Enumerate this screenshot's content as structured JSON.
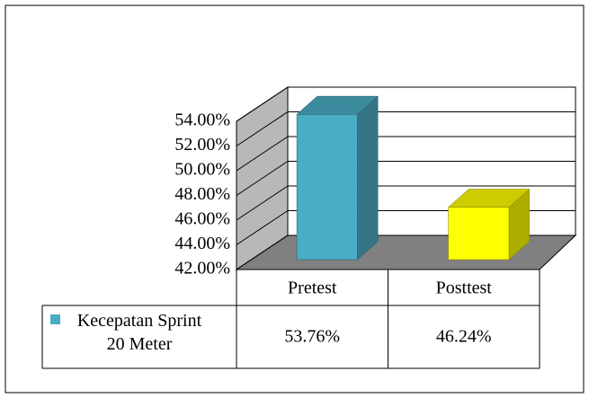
{
  "chart_data": {
    "type": "bar3d",
    "categories": [
      "Pretest",
      "Posttest"
    ],
    "series": [
      {
        "name": "Kecepatan Sprint 20 Meter",
        "color": "#4bacc6",
        "colors": [
          "#4bacc6",
          "#ffff00"
        ],
        "values": [
          53.76,
          46.24
        ],
        "value_labels": [
          "53.76%",
          "46.24%"
        ]
      }
    ],
    "ylim": [
      42,
      54
    ],
    "yticks": [
      {
        "value": 42,
        "label": "42.00%"
      },
      {
        "value": 44,
        "label": "44.00%"
      },
      {
        "value": 46,
        "label": "46.00%"
      },
      {
        "value": 48,
        "label": "48.00%"
      },
      {
        "value": 50,
        "label": "50.00%"
      },
      {
        "value": 52,
        "label": "52.00%"
      },
      {
        "value": 54,
        "label": "54.00%"
      }
    ],
    "grid": true
  }
}
